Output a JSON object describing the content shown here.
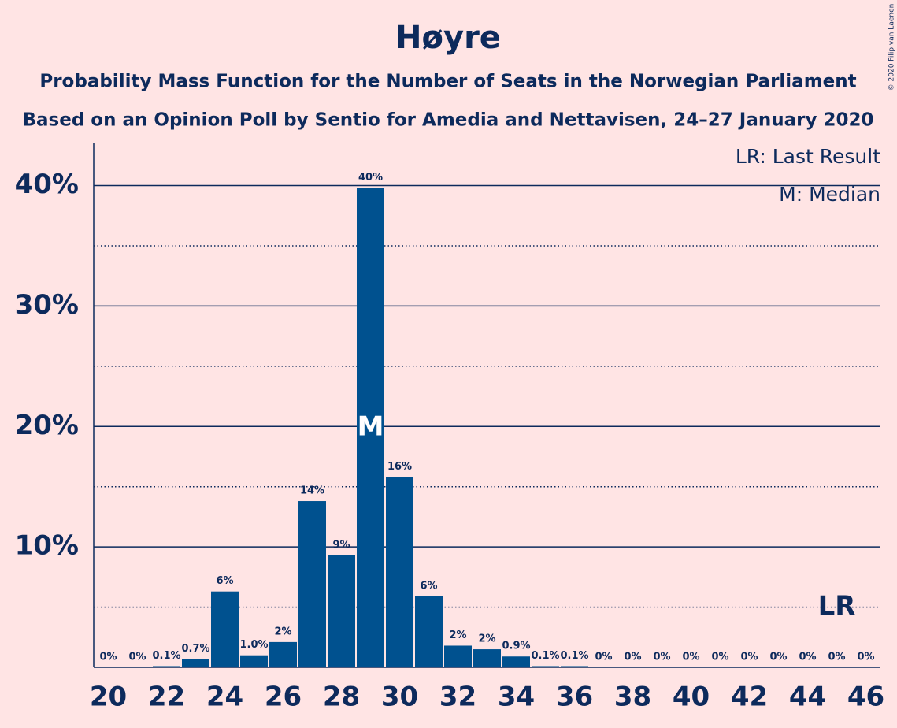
{
  "chart_data": {
    "type": "bar",
    "title": "Høyre",
    "subtitle": [
      "Probability Mass Function for the Number of Seats in the Norwegian Parliament",
      "Based on an Opinion Poll by Sentio for Amedia and Nettavisen, 24–27 January 2020"
    ],
    "copyright": "© 2020 Filip van Laenen",
    "x": [
      20,
      21,
      22,
      23,
      24,
      25,
      26,
      27,
      28,
      29,
      30,
      31,
      32,
      33,
      34,
      35,
      36,
      37,
      38,
      39,
      40,
      41,
      42,
      43,
      44,
      45,
      46
    ],
    "values": [
      0,
      0,
      0.1,
      0.7,
      6.3,
      1.0,
      2.1,
      13.8,
      9.3,
      39.8,
      15.8,
      5.9,
      1.8,
      1.5,
      0.9,
      0.1,
      0.1,
      0,
      0,
      0,
      0,
      0,
      0,
      0,
      0,
      0,
      0
    ],
    "value_labels": [
      "0%",
      "0%",
      "0.1%",
      "0.7%",
      "6%",
      "1.0%",
      "2%",
      "14%",
      "9%",
      "40%",
      "16%",
      "6%",
      "2%",
      "2%",
      "0.9%",
      "0.1%",
      "0.1%",
      "0%",
      "0%",
      "0%",
      "0%",
      "0%",
      "0%",
      "0%",
      "0%",
      "0%",
      "0%"
    ],
    "color": "#00518f",
    "xlim": [
      19.5,
      46.5
    ],
    "xticks": [
      20,
      22,
      24,
      26,
      28,
      30,
      32,
      34,
      36,
      38,
      40,
      42,
      44,
      46
    ],
    "ylim": [
      0,
      43.5
    ],
    "yticks": [
      {
        "value": 10,
        "label": "10%"
      },
      {
        "value": 20,
        "label": "20%"
      },
      {
        "value": 30,
        "label": "30%"
      },
      {
        "value": 40,
        "label": "40%"
      }
    ],
    "minor_yticks": [
      5,
      15,
      25,
      35
    ],
    "grid": true,
    "median": {
      "x": 29,
      "label": "M"
    },
    "last_result": {
      "x": 45,
      "label": "LR"
    },
    "legend": [
      "LR: Last Result",
      "M: Median"
    ],
    "legend_position": "upper right"
  }
}
